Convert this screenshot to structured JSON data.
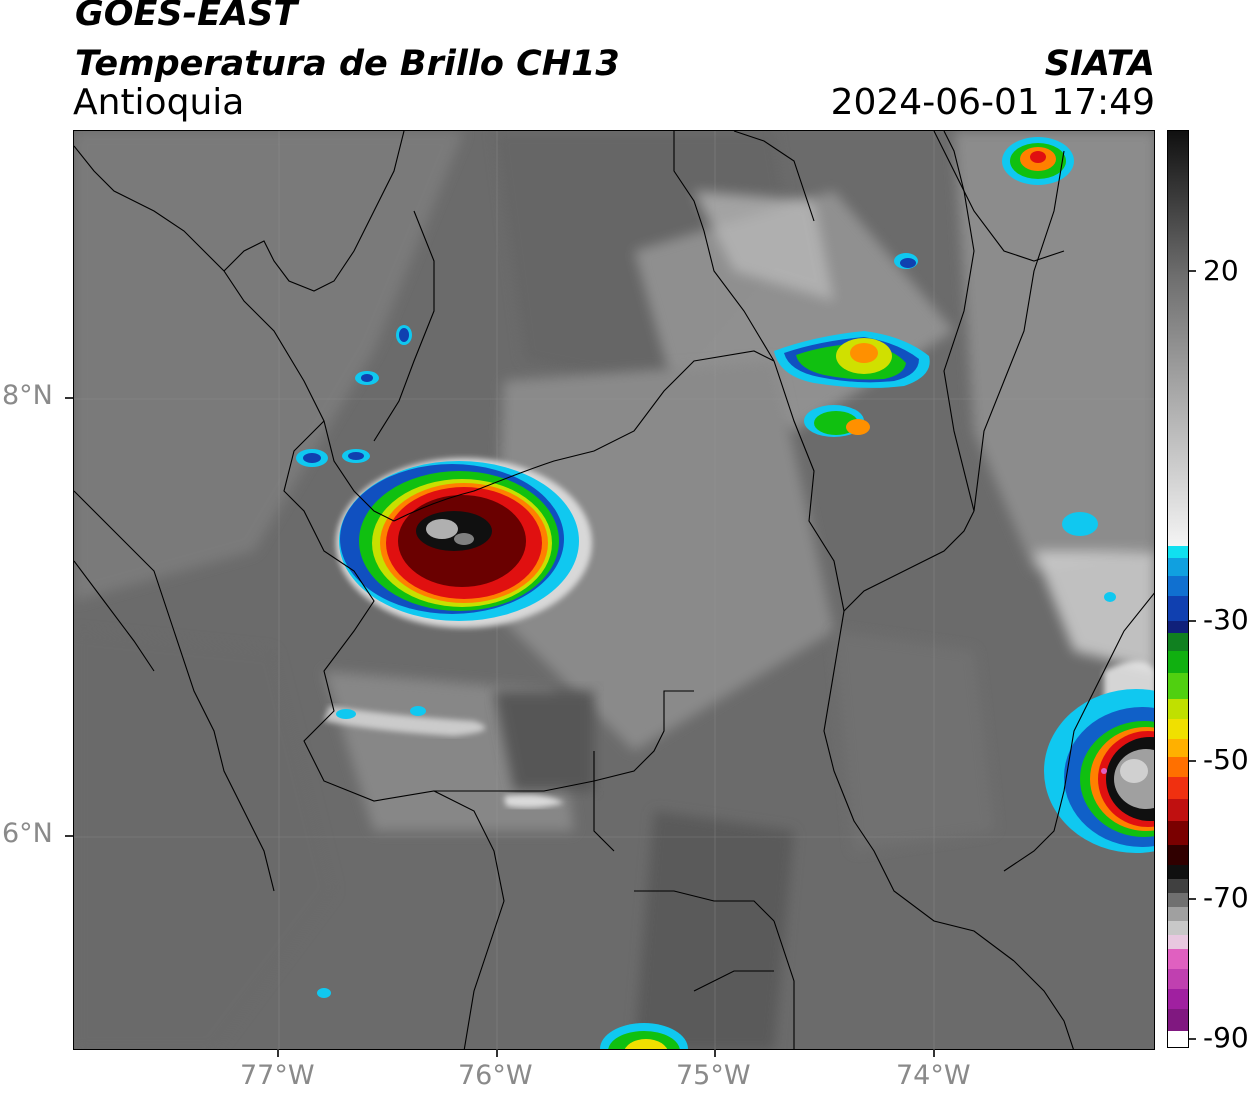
{
  "header": {
    "satellite": "GOES-EAST",
    "product": "Temperatura de Brillo CH13",
    "region": "Antioquia",
    "org": "SIATA",
    "datetime": "2024-06-01 17:49"
  },
  "axes": {
    "lat_labels": [
      "8°N",
      "6°N"
    ],
    "lon_labels": [
      "77°W",
      "76°W",
      "75°W",
      "74°W"
    ]
  },
  "colorbar": {
    "tick_labels": [
      "20",
      "-30",
      "-50",
      "-70",
      "-90"
    ],
    "colors": {
      "gray_light": "#f2f2f2",
      "gray_dark": "#4f4f4f",
      "cyan": "#10d0f0",
      "blue": "#1040b0",
      "green": "#10c010",
      "yellow": "#f0e000",
      "orange": "#ff8000",
      "red": "#e01010",
      "dark_red": "#6a0000",
      "black": "#101010",
      "magenta": "#e060c0",
      "purple": "#a020a0"
    }
  }
}
